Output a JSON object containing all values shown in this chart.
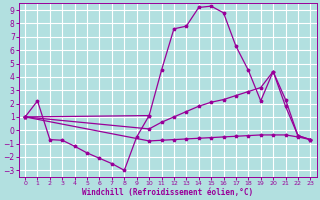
{
  "background_color": "#b2e0e0",
  "grid_color": "#ffffff",
  "line_color": "#990099",
  "xlabel": "Windchill (Refroidissement éolien,°C)",
  "xlabel_color": "#990099",
  "tick_color": "#990099",
  "xlim": [
    -0.5,
    23.5
  ],
  "ylim": [
    -3.5,
    9.5
  ],
  "xticks": [
    0,
    1,
    2,
    3,
    4,
    5,
    6,
    7,
    8,
    9,
    10,
    11,
    12,
    13,
    14,
    15,
    16,
    17,
    18,
    19,
    20,
    21,
    22,
    23
  ],
  "yticks": [
    -3,
    -2,
    -1,
    0,
    1,
    2,
    3,
    4,
    5,
    6,
    7,
    8,
    9
  ],
  "lines": [
    {
      "x": [
        0,
        1,
        2,
        3,
        4,
        5,
        6,
        7,
        8,
        9,
        10
      ],
      "y": [
        1.0,
        2.2,
        -0.7,
        -0.75,
        -1.2,
        -1.7,
        -2.1,
        -2.5,
        -3.0,
        -0.5,
        1.1
      ]
    },
    {
      "x": [
        0,
        10,
        11,
        12,
        13,
        14,
        15,
        16,
        17,
        18,
        19,
        20,
        21,
        22,
        23
      ],
      "y": [
        1.0,
        1.1,
        4.5,
        7.6,
        7.8,
        9.2,
        9.3,
        8.8,
        6.3,
        4.5,
        2.2,
        4.4,
        1.8,
        -0.4,
        -0.7
      ]
    },
    {
      "x": [
        0,
        10,
        11,
        12,
        13,
        14,
        15,
        16,
        17,
        18,
        19,
        20,
        21,
        22,
        23
      ],
      "y": [
        1.0,
        0.1,
        0.6,
        1.0,
        1.4,
        1.8,
        2.1,
        2.3,
        2.6,
        2.9,
        3.2,
        4.4,
        2.3,
        -0.4,
        -0.7
      ]
    },
    {
      "x": [
        0,
        10,
        11,
        12,
        13,
        14,
        15,
        16,
        17,
        18,
        19,
        20,
        21,
        22,
        23
      ],
      "y": [
        1.0,
        -0.8,
        -0.75,
        -0.7,
        -0.65,
        -0.6,
        -0.55,
        -0.5,
        -0.45,
        -0.4,
        -0.35,
        -0.35,
        -0.35,
        -0.5,
        -0.7
      ]
    }
  ]
}
